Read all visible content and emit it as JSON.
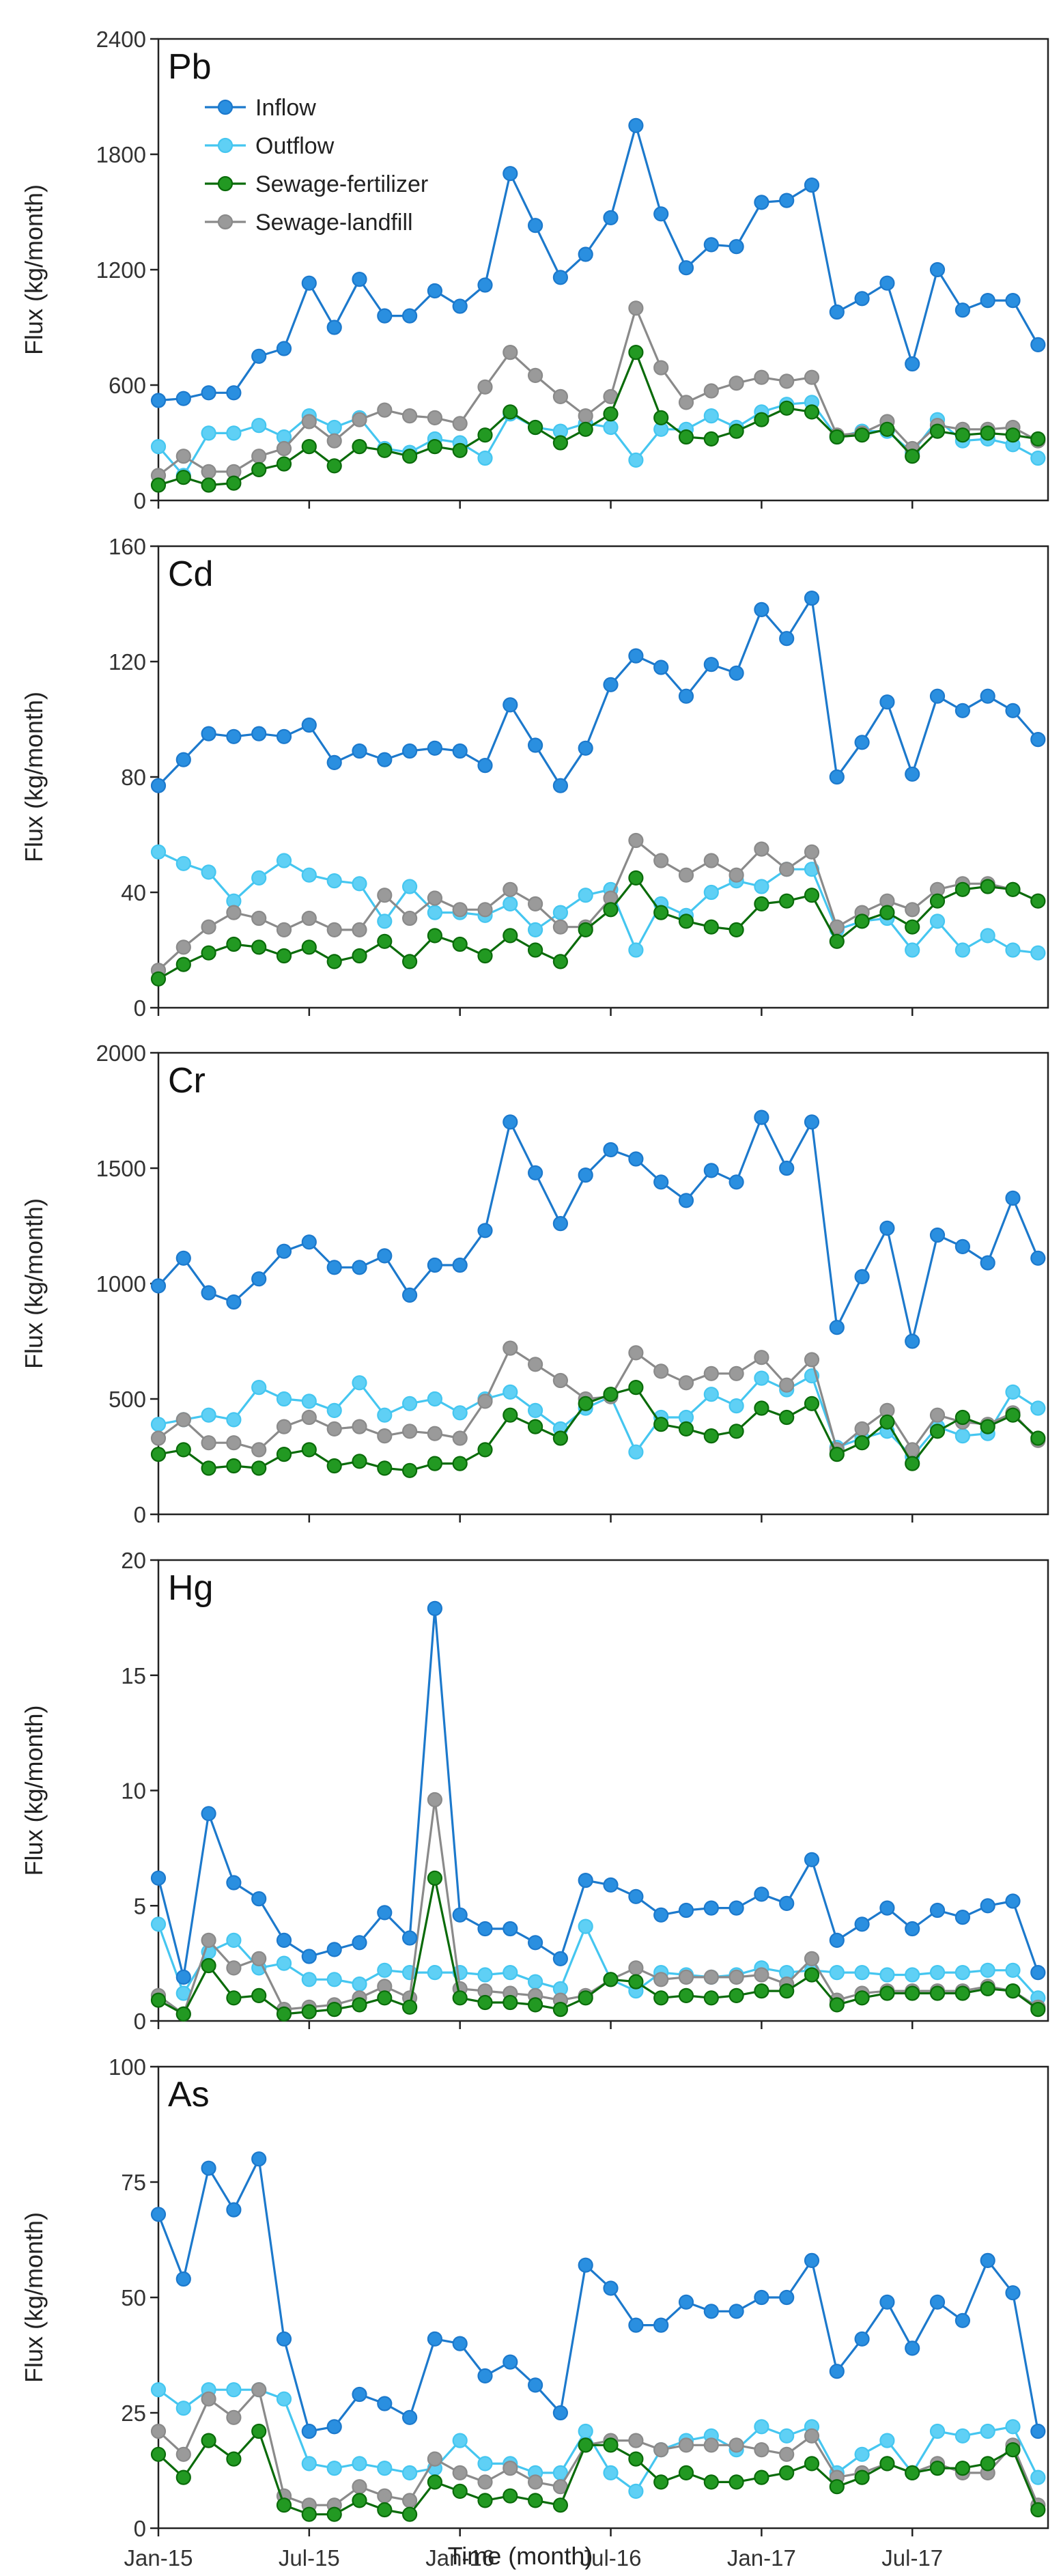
{
  "figure": {
    "xlabel": "Time (month)",
    "x_tick_labels": [
      "Jan-15",
      "Jul-15",
      "Jan-16",
      "Jul-16",
      "Jan-17",
      "Jul-17"
    ],
    "x_tick_positions": [
      1,
      7,
      13,
      19,
      25,
      31
    ],
    "months_count": 36
  },
  "series_meta": [
    {
      "name": "Inflow",
      "color": "#1c79cc",
      "fill": "#2a8fe0"
    },
    {
      "name": "Outflow",
      "color": "#45c6f0",
      "fill": "#5fd0f5"
    },
    {
      "name": "Sewage-fertilizer",
      "color": "#0a6b0a",
      "fill": "#229922"
    },
    {
      "name": "Sewage-landfill",
      "color": "#8a8a8a",
      "fill": "#9a9a9a"
    }
  ],
  "chart_data": [
    {
      "type": "line",
      "title": "Pb",
      "xlabel": "",
      "ylabel": "Flux (kg/month)",
      "ylim": [
        0,
        2400
      ],
      "yticks": [
        0,
        600,
        1200,
        1800,
        2400
      ],
      "x": [
        1,
        2,
        3,
        4,
        5,
        6,
        7,
        8,
        9,
        10,
        11,
        12,
        13,
        14,
        15,
        16,
        17,
        18,
        19,
        20,
        21,
        22,
        23,
        24,
        25,
        26,
        27,
        28,
        29,
        30,
        31,
        32,
        33,
        34,
        35,
        36
      ],
      "series": [
        {
          "name": "Inflow",
          "values": [
            520,
            530,
            560,
            560,
            750,
            790,
            1130,
            900,
            1150,
            960,
            960,
            1090,
            1010,
            1120,
            1700,
            1430,
            1160,
            1280,
            1470,
            1950,
            1490,
            1210,
            1330,
            1320,
            1550,
            1560,
            1640,
            980,
            1050,
            1130,
            710,
            1200,
            990,
            1040,
            1040,
            810
          ]
        },
        {
          "name": "Outflow",
          "values": [
            280,
            130,
            350,
            350,
            390,
            330,
            440,
            380,
            430,
            270,
            250,
            320,
            300,
            220,
            450,
            380,
            360,
            400,
            380,
            210,
            370,
            370,
            440,
            380,
            460,
            500,
            510,
            330,
            360,
            360,
            250,
            420,
            310,
            320,
            290,
            220
          ]
        },
        {
          "name": "Sewage-fertilizer",
          "values": [
            80,
            120,
            80,
            90,
            160,
            190,
            280,
            180,
            280,
            260,
            230,
            280,
            260,
            340,
            460,
            380,
            300,
            370,
            450,
            770,
            430,
            330,
            320,
            360,
            420,
            480,
            460,
            330,
            340,
            370,
            230,
            360,
            340,
            350,
            340,
            320
          ]
        },
        {
          "name": "Sewage-landfill",
          "values": [
            130,
            230,
            150,
            150,
            230,
            270,
            410,
            310,
            420,
            470,
            440,
            430,
            400,
            590,
            770,
            650,
            540,
            440,
            540,
            1000,
            690,
            510,
            570,
            610,
            640,
            620,
            640,
            340,
            350,
            410,
            270,
            390,
            370,
            370,
            380,
            310
          ]
        }
      ]
    },
    {
      "type": "line",
      "title": "Cd",
      "xlabel": "",
      "ylabel": "Flux (kg/month)",
      "ylim": [
        0,
        160
      ],
      "yticks": [
        0,
        40,
        80,
        120,
        160
      ],
      "x": [
        1,
        2,
        3,
        4,
        5,
        6,
        7,
        8,
        9,
        10,
        11,
        12,
        13,
        14,
        15,
        16,
        17,
        18,
        19,
        20,
        21,
        22,
        23,
        24,
        25,
        26,
        27,
        28,
        29,
        30,
        31,
        32,
        33,
        34,
        35,
        36
      ],
      "series": [
        {
          "name": "Inflow",
          "values": [
            77,
            86,
            95,
            94,
            95,
            94,
            98,
            85,
            89,
            86,
            89,
            90,
            89,
            84,
            105,
            91,
            77,
            90,
            112,
            122,
            118,
            108,
            119,
            116,
            138,
            128,
            142,
            80,
            92,
            106,
            81,
            108,
            103,
            108,
            103,
            93
          ]
        },
        {
          "name": "Outflow",
          "values": [
            54,
            50,
            47,
            37,
            45,
            51,
            46,
            44,
            43,
            30,
            42,
            33,
            33,
            32,
            36,
            27,
            33,
            39,
            41,
            20,
            36,
            32,
            40,
            44,
            42,
            48,
            48,
            27,
            30,
            31,
            20,
            30,
            20,
            25,
            20,
            19
          ]
        },
        {
          "name": "Sewage-fertilizer",
          "values": [
            10,
            15,
            19,
            22,
            21,
            18,
            21,
            16,
            18,
            23,
            16,
            25,
            22,
            18,
            25,
            20,
            16,
            27,
            34,
            45,
            33,
            30,
            28,
            27,
            36,
            37,
            39,
            23,
            30,
            33,
            28,
            37,
            41,
            42,
            41,
            37
          ]
        },
        {
          "name": "Sewage-landfill",
          "values": [
            13,
            21,
            28,
            33,
            31,
            27,
            31,
            27,
            27,
            39,
            31,
            38,
            34,
            34,
            41,
            36,
            28,
            28,
            38,
            58,
            51,
            46,
            51,
            46,
            55,
            48,
            54,
            28,
            33,
            37,
            34,
            41,
            43,
            43,
            41,
            37
          ]
        }
      ]
    },
    {
      "type": "line",
      "title": "Cr",
      "xlabel": "",
      "ylabel": "Flux (kg/month)",
      "ylim": [
        0,
        2000
      ],
      "yticks": [
        0,
        500,
        1000,
        1500,
        2000
      ],
      "x": [
        1,
        2,
        3,
        4,
        5,
        6,
        7,
        8,
        9,
        10,
        11,
        12,
        13,
        14,
        15,
        16,
        17,
        18,
        19,
        20,
        21,
        22,
        23,
        24,
        25,
        26,
        27,
        28,
        29,
        30,
        31,
        32,
        33,
        34,
        35,
        36
      ],
      "series": [
        {
          "name": "Inflow",
          "values": [
            990,
            1110,
            960,
            920,
            1020,
            1140,
            1180,
            1070,
            1070,
            1120,
            950,
            1080,
            1080,
            1230,
            1700,
            1480,
            1260,
            1470,
            1580,
            1540,
            1440,
            1360,
            1490,
            1440,
            1720,
            1500,
            1700,
            810,
            1030,
            1240,
            750,
            1210,
            1160,
            1090,
            1370,
            1110
          ]
        },
        {
          "name": "Outflow",
          "values": [
            390,
            410,
            430,
            410,
            550,
            500,
            490,
            450,
            570,
            430,
            480,
            500,
            440,
            500,
            530,
            450,
            370,
            460,
            510,
            270,
            420,
            420,
            520,
            470,
            590,
            540,
            600,
            290,
            330,
            360,
            250,
            380,
            340,
            350,
            530,
            460
          ]
        },
        {
          "name": "Sewage-fertilizer",
          "values": [
            260,
            280,
            200,
            210,
            200,
            260,
            280,
            210,
            230,
            200,
            190,
            220,
            220,
            280,
            430,
            380,
            330,
            480,
            520,
            550,
            390,
            370,
            340,
            360,
            460,
            420,
            480,
            260,
            310,
            400,
            220,
            360,
            420,
            380,
            430,
            330
          ]
        },
        {
          "name": "Sewage-landfill",
          "values": [
            330,
            410,
            310,
            310,
            280,
            380,
            420,
            370,
            380,
            340,
            360,
            350,
            330,
            490,
            720,
            650,
            580,
            500,
            510,
            700,
            620,
            570,
            610,
            610,
            680,
            560,
            670,
            280,
            370,
            450,
            280,
            430,
            400,
            390,
            440,
            320
          ]
        }
      ]
    },
    {
      "type": "line",
      "title": "Hg",
      "xlabel": "",
      "ylabel": "Flux (kg/month)",
      "ylim": [
        0,
        20
      ],
      "yticks": [
        0,
        5,
        10,
        15,
        20
      ],
      "x": [
        1,
        2,
        3,
        4,
        5,
        6,
        7,
        8,
        9,
        10,
        11,
        12,
        13,
        14,
        15,
        16,
        17,
        18,
        19,
        20,
        21,
        22,
        23,
        24,
        25,
        26,
        27,
        28,
        29,
        30,
        31,
        32,
        33,
        34,
        35,
        36
      ],
      "series": [
        {
          "name": "Inflow",
          "values": [
            6.2,
            1.9,
            9.0,
            6.0,
            5.3,
            3.5,
            2.8,
            3.1,
            3.4,
            4.7,
            3.6,
            17.9,
            4.6,
            4.0,
            4.0,
            3.4,
            2.7,
            6.1,
            5.9,
            5.4,
            4.6,
            4.8,
            4.9,
            4.9,
            5.5,
            5.1,
            7.0,
            3.5,
            4.2,
            4.9,
            4.0,
            4.8,
            4.5,
            5.0,
            5.2,
            2.1
          ]
        },
        {
          "name": "Outflow",
          "values": [
            4.2,
            1.2,
            3.0,
            3.5,
            2.3,
            2.5,
            1.8,
            1.8,
            1.6,
            2.2,
            2.1,
            2.1,
            2.1,
            2.0,
            2.1,
            1.7,
            1.4,
            4.1,
            1.8,
            1.3,
            2.1,
            2.0,
            1.9,
            2.0,
            2.3,
            2.1,
            2.2,
            2.1,
            2.1,
            2.0,
            2.0,
            2.1,
            2.1,
            2.2,
            2.2,
            1.0
          ]
        },
        {
          "name": "Sewage-fertilizer",
          "values": [
            0.9,
            0.3,
            2.4,
            1.0,
            1.1,
            0.3,
            0.4,
            0.5,
            0.7,
            1.0,
            0.6,
            6.2,
            1.0,
            0.8,
            0.8,
            0.7,
            0.5,
            1.0,
            1.8,
            1.7,
            1.0,
            1.1,
            1.0,
            1.1,
            1.3,
            1.3,
            2.0,
            0.7,
            1.0,
            1.2,
            1.2,
            1.2,
            1.2,
            1.4,
            1.3,
            0.5
          ]
        },
        {
          "name": "Sewage-landfill",
          "values": [
            1.1,
            0.3,
            3.5,
            2.3,
            2.7,
            0.5,
            0.6,
            0.7,
            1.0,
            1.5,
            1.0,
            9.6,
            1.4,
            1.3,
            1.2,
            1.1,
            0.9,
            1.1,
            1.8,
            2.3,
            1.8,
            1.9,
            1.9,
            1.9,
            2.0,
            1.6,
            2.7,
            0.9,
            1.2,
            1.3,
            1.3,
            1.3,
            1.3,
            1.5,
            1.3,
            0.6
          ]
        }
      ]
    },
    {
      "type": "line",
      "title": "As",
      "xlabel": "Time (month)",
      "ylabel": "Flux (kg/month)",
      "ylim": [
        0,
        100
      ],
      "yticks": [
        0,
        25,
        50,
        75,
        100
      ],
      "x": [
        1,
        2,
        3,
        4,
        5,
        6,
        7,
        8,
        9,
        10,
        11,
        12,
        13,
        14,
        15,
        16,
        17,
        18,
        19,
        20,
        21,
        22,
        23,
        24,
        25,
        26,
        27,
        28,
        29,
        30,
        31,
        32,
        33,
        34,
        35,
        36
      ],
      "series": [
        {
          "name": "Inflow",
          "values": [
            68,
            54,
            78,
            69,
            80,
            41,
            21,
            22,
            29,
            27,
            24,
            41,
            40,
            33,
            36,
            31,
            25,
            57,
            52,
            44,
            44,
            49,
            47,
            47,
            50,
            50,
            58,
            34,
            41,
            49,
            39,
            49,
            45,
            58,
            51,
            21
          ]
        },
        {
          "name": "Outflow",
          "values": [
            30,
            26,
            30,
            30,
            30,
            28,
            14,
            13,
            14,
            13,
            12,
            13,
            19,
            14,
            14,
            12,
            12,
            21,
            12,
            8,
            17,
            19,
            20,
            17,
            22,
            20,
            22,
            12,
            16,
            19,
            12,
            21,
            20,
            21,
            22,
            11
          ]
        },
        {
          "name": "Sewage-fertilizer",
          "values": [
            16,
            11,
            19,
            15,
            21,
            5,
            3,
            3,
            6,
            4,
            3,
            10,
            8,
            6,
            7,
            6,
            5,
            18,
            18,
            15,
            10,
            12,
            10,
            10,
            11,
            12,
            14,
            9,
            11,
            14,
            12,
            13,
            13,
            14,
            17,
            4
          ]
        },
        {
          "name": "Sewage-landfill",
          "values": [
            21,
            16,
            28,
            24,
            30,
            7,
            5,
            5,
            9,
            7,
            6,
            15,
            12,
            10,
            13,
            10,
            9,
            18,
            19,
            19,
            17,
            18,
            18,
            18,
            17,
            16,
            20,
            11,
            12,
            14,
            12,
            14,
            12,
            12,
            18,
            5
          ]
        }
      ]
    }
  ]
}
